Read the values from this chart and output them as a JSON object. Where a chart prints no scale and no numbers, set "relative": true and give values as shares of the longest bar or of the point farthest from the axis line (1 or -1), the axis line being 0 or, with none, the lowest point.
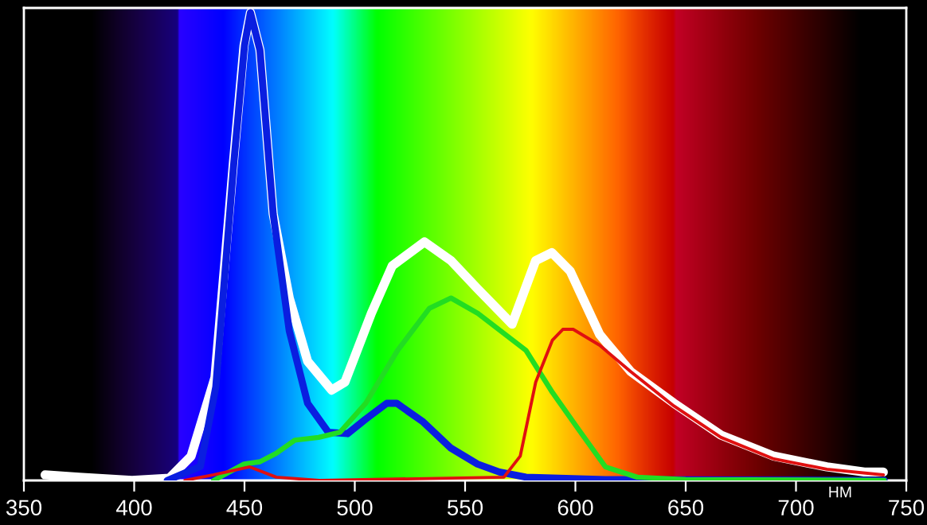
{
  "chart_data": {
    "type": "line",
    "relative": true,
    "xlabel": "НМ",
    "xlim": [
      350,
      750
    ],
    "xticks": [
      350,
      400,
      450,
      500,
      550,
      600,
      650,
      700,
      750
    ],
    "tick_labels": "x",
    "grid": false,
    "legend": false,
    "marker": "none",
    "line_style": "solid",
    "series": [
      {
        "color": "#ffffff",
        "x": [
          359.6,
          375,
          399,
          416,
          425.8,
          436.6,
          445,
          449.8,
          452.7,
          457,
          463,
          470.3,
          478.6,
          489.5,
          495.5,
          507.5,
          517,
          531.6,
          543.6,
          555.6,
          571.3,
          582,
          589.3,
          597.7,
          611,
          625,
          644.7,
          666,
          690,
          714,
          731,
          739.6
        ],
        "values": [
          0.012,
          0.007,
          0,
          0.005,
          0.052,
          0.22,
          0.68,
          0.93,
          1.0,
          0.92,
          0.57,
          0.39,
          0.255,
          0.193,
          0.21,
          0.357,
          0.459,
          0.51,
          0.47,
          0.41,
          0.334,
          0.47,
          0.487,
          0.447,
          0.312,
          0.233,
          0.165,
          0.097,
          0.052,
          0.029,
          0.018,
          0.018
        ]
      },
      {
        "color": "#0a1ee0",
        "x": [
          415,
          430,
          437,
          445,
          450,
          452.7,
          457,
          463,
          470.3,
          478.6,
          488,
          496.7,
          504.9,
          514.5,
          519,
          531,
          543.6,
          555.6,
          565.5,
          577.6,
          613.6,
          740
        ],
        "values": [
          0,
          0.03,
          0.2,
          0.67,
          0.93,
          1.0,
          0.92,
          0.57,
          0.32,
          0.165,
          0.103,
          0.1,
          0.131,
          0.165,
          0.165,
          0.125,
          0.069,
          0.035,
          0.018,
          0.007,
          0.002,
          0
        ]
      },
      {
        "color": "#22dd22",
        "x": [
          436,
          449.8,
          457,
          464.4,
          472.8,
          483.6,
          493.3,
          505,
          519.4,
          533.8,
          543.6,
          555.8,
          577.6,
          589.6,
          601.6,
          613.6,
          628,
          650,
          740
        ],
        "values": [
          0,
          0.035,
          0.04,
          0.058,
          0.086,
          0.092,
          0.103,
          0.165,
          0.278,
          0.368,
          0.39,
          0.357,
          0.278,
          0.188,
          0.108,
          0.029,
          0.007,
          0.002,
          0
        ]
      },
      {
        "color": "#e01010",
        "x": [
          423,
          436,
          452.4,
          464.4,
          484,
          567.6,
          575,
          582,
          589.6,
          594.3,
          599,
          611,
          625,
          644.7,
          666,
          690,
          714,
          739.6
        ],
        "values": [
          0,
          0.012,
          0.029,
          0.007,
          0,
          0.007,
          0.052,
          0.21,
          0.3,
          0.323,
          0.323,
          0.289,
          0.233,
          0.159,
          0.092,
          0.046,
          0.024,
          0.012
        ]
      }
    ]
  }
}
